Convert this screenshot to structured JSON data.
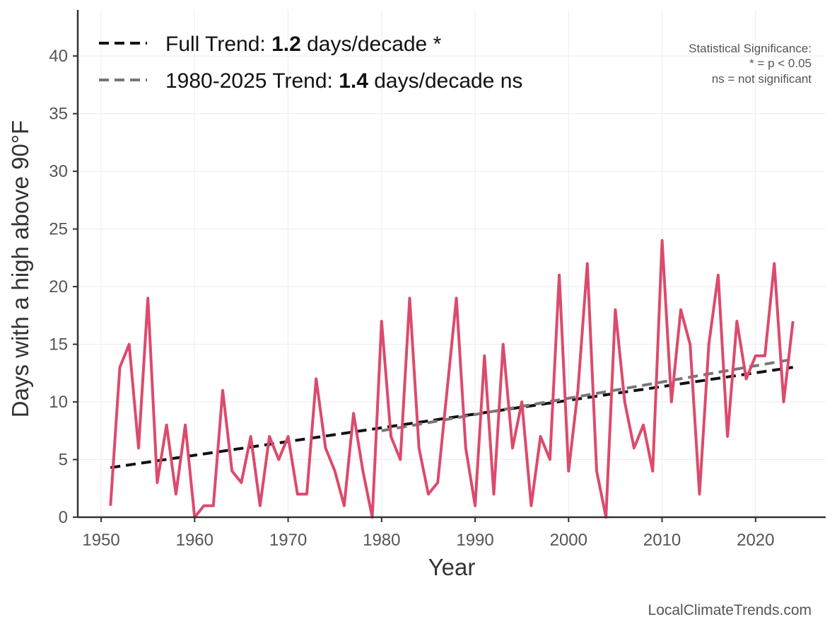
{
  "chart_data": {
    "type": "line",
    "xlabel": "Year",
    "ylabel": "Days with a high above 90°F",
    "xlim": [
      1947.5,
      2027.5
    ],
    "ylim": [
      0,
      44
    ],
    "x_ticks": [
      1950,
      1960,
      1970,
      1980,
      1990,
      2000,
      2010,
      2020
    ],
    "y_ticks": [
      0,
      5,
      10,
      15,
      20,
      25,
      30,
      35,
      40
    ],
    "grid": true,
    "legend_position": "top-left",
    "colors": {
      "series": "#dc4a6c",
      "full_trend": "#111111",
      "recent_trend": "#777777"
    },
    "series": [
      {
        "x": [
          1951,
          1952,
          1953,
          1954,
          1955,
          1956,
          1957,
          1958,
          1959,
          1960,
          1961,
          1962,
          1963,
          1964,
          1965,
          1966,
          1967,
          1968,
          1969,
          1970,
          1971,
          1972,
          1973,
          1974,
          1975,
          1976,
          1977,
          1978,
          1979,
          1980,
          1981,
          1982,
          1983,
          1984,
          1985,
          1986,
          1987,
          1988,
          1989,
          1990,
          1991,
          1992,
          1993,
          1994,
          1995,
          1996,
          1997,
          1998,
          1999,
          2000,
          2001,
          2002,
          2003,
          2004,
          2005,
          2006,
          2007,
          2008,
          2009,
          2010,
          2011,
          2012,
          2013,
          2014,
          2015,
          2016,
          2017,
          2018,
          2019,
          2020,
          2021,
          2022,
          2023,
          2024
        ],
        "values": [
          1,
          13,
          15,
          6,
          19,
          3,
          8,
          2,
          8,
          0,
          1,
          1,
          11,
          4,
          3,
          7,
          1,
          7,
          5,
          7,
          2,
          2,
          12,
          6,
          4,
          1,
          9,
          4,
          0,
          17,
          7,
          5,
          19,
          6,
          2,
          3,
          11,
          19,
          6,
          1,
          14,
          2,
          15,
          6,
          10,
          1,
          7,
          5,
          21,
          4,
          11,
          22,
          4,
          0,
          18,
          10,
          6,
          8,
          4,
          24,
          10,
          18,
          15,
          2,
          15,
          21,
          7,
          17,
          12,
          14,
          14,
          22,
          10,
          17
        ]
      }
    ],
    "trends": [
      {
        "x": [
          1951,
          2024
        ],
        "values": [
          4.3,
          13.0
        ]
      },
      {
        "x": [
          1980,
          2024
        ],
        "values": [
          7.5,
          13.7
        ]
      }
    ],
    "legend": [
      {
        "prefix": "Full Trend: ",
        "value": "1.2",
        "suffix": " days/decade *"
      },
      {
        "prefix": "1980-2025 Trend: ",
        "value": "1.4",
        "suffix": " days/decade ns"
      }
    ],
    "annotation": [
      "Statistical Significance:",
      "* = p < 0.05",
      "ns = not significant"
    ],
    "credit": "LocalClimateTrends.com"
  }
}
